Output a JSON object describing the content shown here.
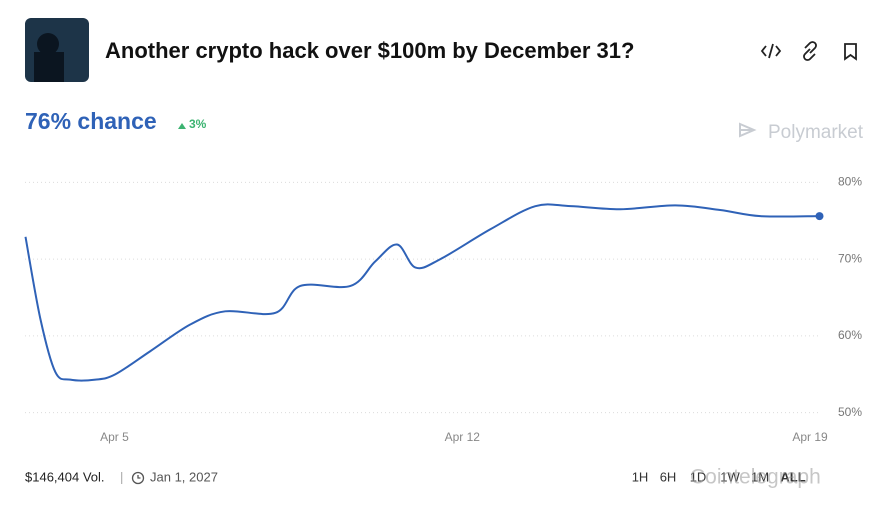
{
  "header": {
    "title": "Another crypto hack over $100m by December 31?",
    "chance": "76% chance",
    "change": "3%",
    "brand": "Polymarket"
  },
  "chart_data": {
    "type": "line",
    "color": "#2f62b7",
    "x": [
      3.21,
      3.51,
      3.81,
      4.11,
      4.62,
      5.02,
      5.72,
      6.53,
      7.23,
      8.24,
      8.74,
      9.75,
      10.25,
      10.69,
      11.06,
      11.56,
      12.57,
      13.47,
      14.18,
      15.18,
      16.29,
      17.19,
      18.0,
      19.19
    ],
    "values": [
      72.9,
      62.2,
      55.3,
      54.3,
      54.3,
      55.0,
      58.0,
      61.5,
      63.2,
      63.0,
      66.5,
      66.5,
      69.7,
      71.9,
      68.9,
      70.0,
      73.9,
      76.9,
      76.9,
      76.5,
      77.0,
      76.4,
      75.6,
      75.6
    ],
    "xlim": [
      3.2,
      19.2
    ],
    "ylim": [
      48,
      82
    ],
    "xticks": [
      {
        "value": 5,
        "label": "Apr 5"
      },
      {
        "value": 12,
        "label": "Apr 12"
      },
      {
        "value": 19,
        "label": "Apr 19"
      }
    ],
    "yticks": [
      {
        "value": 50,
        "label": "50%"
      },
      {
        "value": 60,
        "label": "60%"
      },
      {
        "value": 70,
        "label": "70%"
      },
      {
        "value": 80,
        "label": "80%"
      }
    ],
    "grid": true
  },
  "footer": {
    "volume": "$146,404 Vol.",
    "end_date": "Jan 1, 2027",
    "ranges": [
      "1H",
      "6H",
      "1D",
      "1W",
      "1M",
      "ALL"
    ],
    "watermark": "Cointelegraph"
  }
}
